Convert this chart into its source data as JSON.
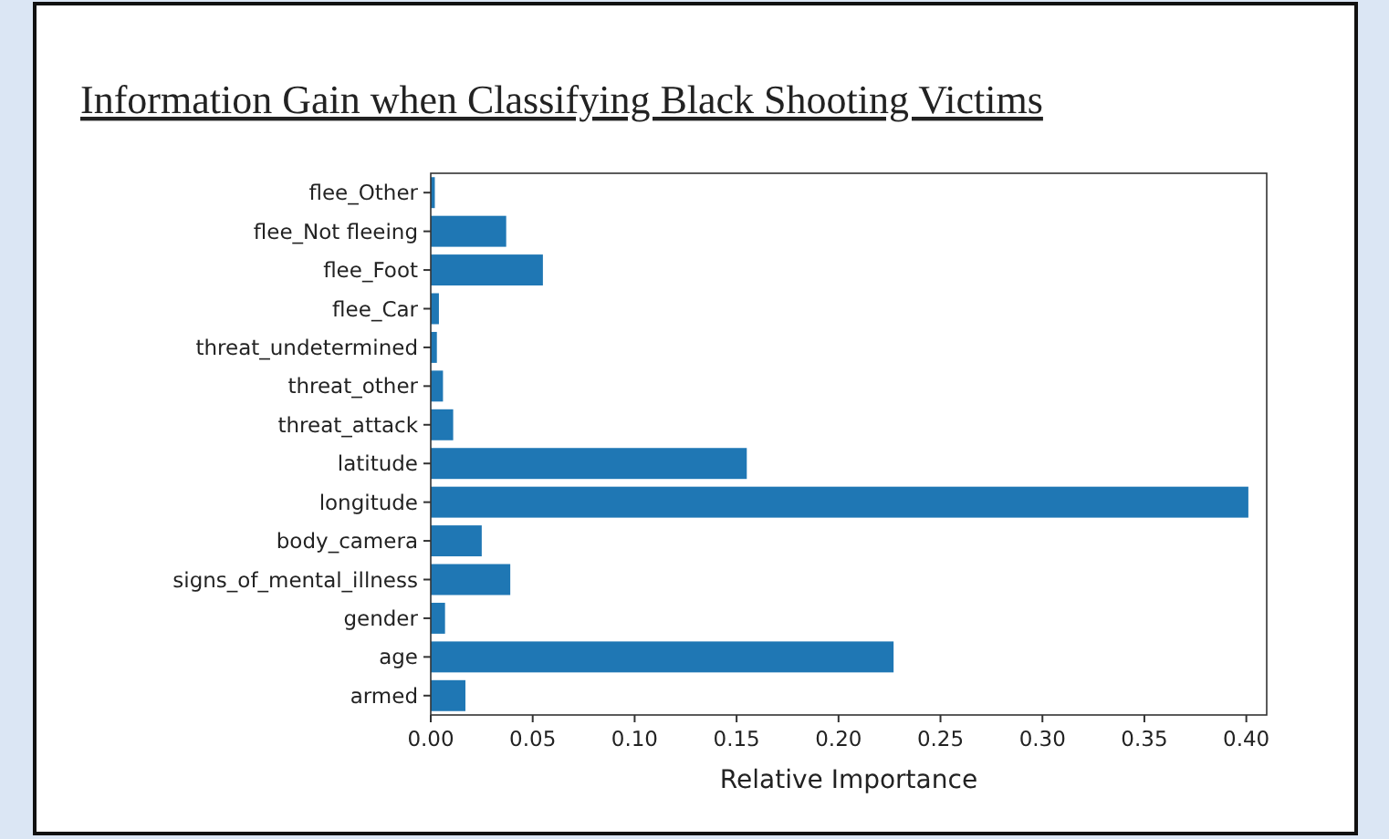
{
  "chart_data": {
    "type": "bar",
    "orientation": "horizontal",
    "title": "Information Gain when Classifying Black Shooting Victims",
    "xlabel": "Relative Importance",
    "categories": [
      "flee_Other",
      "flee_Not fleeing",
      "flee_Foot",
      "flee_Car",
      "threat_undetermined",
      "threat_other",
      "threat_attack",
      "latitude",
      "longitude",
      "body_camera",
      "signs_of_mental_illness",
      "gender",
      "age",
      "armed"
    ],
    "values": [
      0.002,
      0.037,
      0.055,
      0.004,
      0.003,
      0.006,
      0.011,
      0.155,
      0.401,
      0.025,
      0.039,
      0.007,
      0.227,
      0.017
    ],
    "color": "#1f77b4",
    "xlim": [
      0,
      0.41
    ],
    "xticks": [
      {
        "value": 0,
        "label": "0.00"
      },
      {
        "value": 0.05,
        "label": "0.05"
      },
      {
        "value": 0.1,
        "label": "0.10"
      },
      {
        "value": 0.15,
        "label": "0.15"
      },
      {
        "value": 0.2,
        "label": "0.20"
      },
      {
        "value": 0.25,
        "label": "0.25"
      },
      {
        "value": 0.3,
        "label": "0.30"
      },
      {
        "value": 0.35,
        "label": "0.35"
      },
      {
        "value": 0.4,
        "label": "0.40"
      }
    ],
    "grid": false
  }
}
